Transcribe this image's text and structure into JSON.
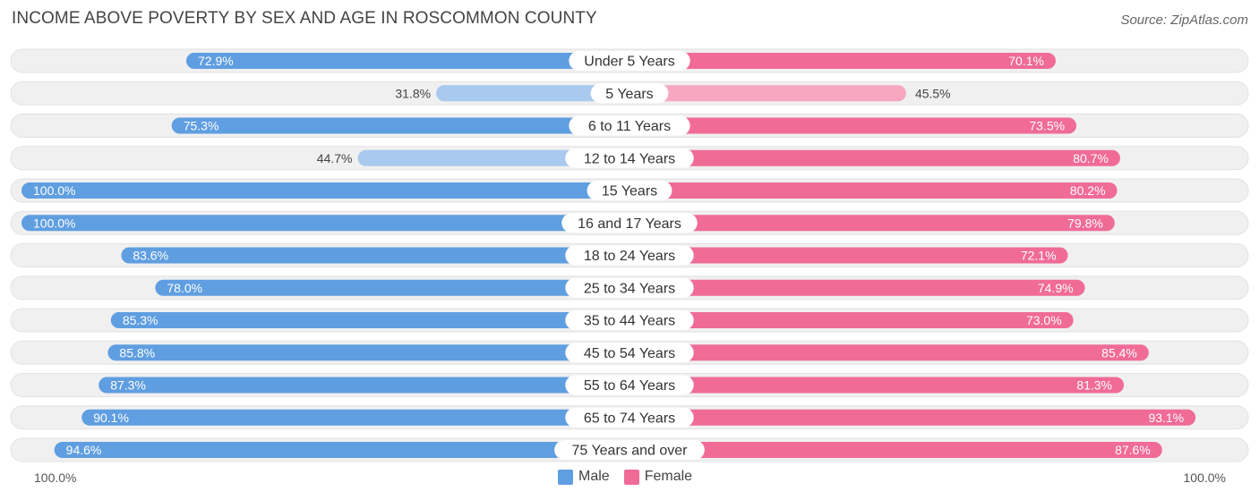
{
  "header": {
    "title": "INCOME ABOVE POVERTY BY SEX AND AGE IN ROSCOMMON COUNTY",
    "source": "Source: ZipAtlas.com"
  },
  "axis": {
    "left_label": "100.0%",
    "right_label": "100.0%"
  },
  "legend": {
    "male_label": "Male",
    "female_label": "Female"
  },
  "colors": {
    "male_strong": "#5f9ee0",
    "male_light": "#a9c9ee",
    "female_strong": "#f06b96",
    "female_light": "#f7a7c0",
    "row_bg": "#f0f0f0"
  },
  "chart_data": {
    "type": "bar",
    "orientation": "horizontal-diverging",
    "categories": [
      "Under 5 Years",
      "5 Years",
      "6 to 11 Years",
      "12 to 14 Years",
      "15 Years",
      "16 and 17 Years",
      "18 to 24 Years",
      "25 to 34 Years",
      "35 to 44 Years",
      "45 to 54 Years",
      "55 to 64 Years",
      "65 to 74 Years",
      "75 Years and over"
    ],
    "series": [
      {
        "name": "Male",
        "values": [
          72.9,
          31.8,
          75.3,
          44.7,
          100.0,
          100.0,
          83.6,
          78.0,
          85.3,
          85.8,
          87.3,
          90.1,
          94.6
        ],
        "labels": [
          "72.9%",
          "31.8%",
          "75.3%",
          "44.7%",
          "100.0%",
          "100.0%",
          "83.6%",
          "78.0%",
          "85.3%",
          "85.8%",
          "87.3%",
          "90.1%",
          "94.6%"
        ]
      },
      {
        "name": "Female",
        "values": [
          70.1,
          45.5,
          73.5,
          80.7,
          80.2,
          79.8,
          72.1,
          74.9,
          73.0,
          85.4,
          81.3,
          93.1,
          87.6
        ],
        "labels": [
          "70.1%",
          "45.5%",
          "73.5%",
          "80.7%",
          "80.2%",
          "79.8%",
          "72.1%",
          "74.9%",
          "73.0%",
          "85.4%",
          "81.3%",
          "93.1%",
          "87.6%"
        ]
      }
    ],
    "xlim": [
      0,
      100
    ]
  }
}
